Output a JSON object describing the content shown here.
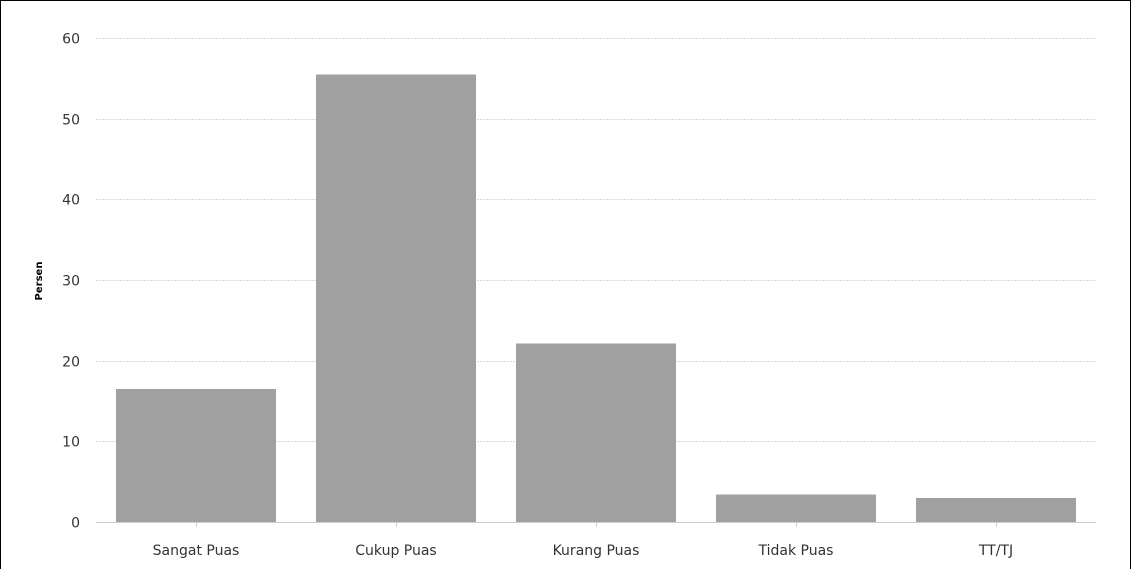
{
  "chart_data": {
    "type": "bar",
    "title": "",
    "xlabel": "",
    "ylabel": "Persen",
    "categories": [
      "Sangat Puas",
      "Cukup Puas",
      "Kurang Puas",
      "Tidak Puas",
      "TT/TJ"
    ],
    "values": [
      16.5,
      55.5,
      22.1,
      3.4,
      3.0
    ],
    "ylim": [
      0,
      60
    ],
    "yticks": [
      0,
      10,
      20,
      30,
      40,
      50,
      60
    ],
    "grid": true,
    "legend": "none",
    "bar_color": "#a0a0a0"
  }
}
